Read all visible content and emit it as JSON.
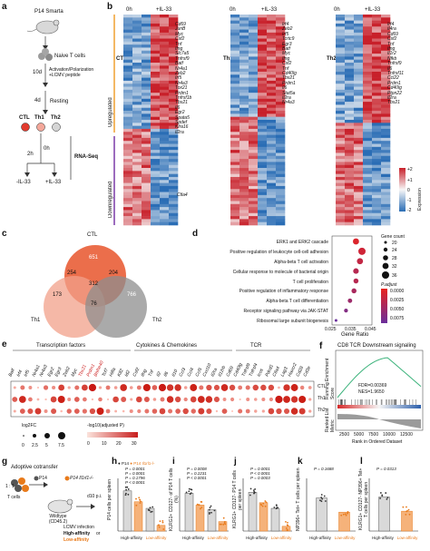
{
  "panel_letters": [
    "a",
    "b",
    "c",
    "d",
    "e",
    "f",
    "g",
    "h",
    "i",
    "j",
    "k",
    "l"
  ],
  "a": {
    "mouse_label": "P14 Smarta",
    "cells": "Naive T cells",
    "step1_time": "10d",
    "step1_label": "Activation/Polarization +LCMV peptide",
    "step2_time": "4d",
    "step2_label": "Resting",
    "groups": [
      "CTL",
      "Th1",
      "Th2"
    ],
    "t0": "0h",
    "t2": "2h",
    "minus": "-IL-33",
    "plus": "+IL-33",
    "assay": "RNA-Seq"
  },
  "b": {
    "heatmaps": [
      {
        "title": "CTL",
        "genes_top": [
          "Cd69",
          "JunB",
          "Myc",
          "Csf2",
          "Tnf",
          "Ifng",
          "Slc7a5",
          "Tnfrsf9",
          "Batf",
          "Nr4a1",
          "Zeb2",
          "Irf5",
          "Nr4a3",
          "Tox21",
          "Prdm1",
          "Tnfrsf1b",
          "Tbx21",
          "Il6",
          "Egr2",
          "Spata5",
          "Spdef",
          "Klra16",
          "Il2ra"
        ],
        "genes_bottom": [
          "Ctla4"
        ]
      },
      {
        "title": "Th1",
        "genes_top": [
          "Irf4",
          "Zeb2",
          "Irf5",
          "Tcrtc9",
          "Egr3",
          "Batf",
          "Myc",
          "Ifng",
          "Csf2",
          "Tnf",
          "Cd40lg",
          "Tbx21",
          "Prdm1",
          "Il6",
          "Stat5a",
          "Il2ra",
          "Nr4a3"
        ],
        "genes_bottom": []
      },
      {
        "title": "Th2",
        "genes_top": [
          "Irf4",
          "Il4ra",
          "Cd69",
          "Csf2",
          "Tnf",
          "Ifng",
          "Il1r2",
          "Nfkb",
          "Tnfrsf9",
          "Il6",
          "Tnfrsf11",
          "Ccl22",
          "Prdm1",
          "Cd40lg",
          "Ptpn22",
          "Il2ra",
          "Tbx21"
        ],
        "genes_bottom": []
      }
    ],
    "col_labels": [
      "0h",
      "+IL-33"
    ],
    "upregulated": "Upregulated",
    "downregulated": "Downregulated",
    "scale_title": "Expression",
    "scale_ticks": [
      "+2",
      "+1",
      "0",
      "-1",
      "-2"
    ]
  },
  "c": {
    "sets": [
      "CTL",
      "Th1",
      "Th2"
    ],
    "values": {
      "ctl_only": "651",
      "th1_only": "173",
      "th2_only": "766",
      "ctl_th1": "254",
      "ctl_th2": "204",
      "th1_th2": "76",
      "all": "312"
    },
    "colors": {
      "ctl": "#e8552c",
      "th1": "#f2a08a",
      "th2": "#9a9a9a"
    }
  },
  "d": {
    "chart_data": {
      "type": "scatter",
      "categories": [
        "ERK1 and ERK2 cascade",
        "Positive regulation of leukocyte cell-cell adhesion",
        "Alpha-beta T cell activation",
        "Cellular response to molecule of bacterial origin",
        "T cell proliferation",
        "Positive regulation of inflammatory response",
        "Alpha-beta T cell differentiation",
        "Receptor signaling pathway via JAK-STAT",
        "Ribosomal large subunit biogenesis"
      ],
      "gene_ratio": [
        0.037,
        0.04,
        0.039,
        0.037,
        0.037,
        0.036,
        0.034,
        0.032,
        0.027
      ],
      "gene_count": [
        32,
        36,
        32,
        30,
        28,
        28,
        26,
        24,
        20
      ],
      "p_adjust": [
        0.001,
        0.002,
        0.003,
        0.004,
        0.004,
        0.005,
        0.006,
        0.008,
        0.01
      ],
      "xlabel": "Gene Ratio",
      "xticks": [
        "0.025",
        "0.035",
        "0.045"
      ],
      "xlim": [
        0.025,
        0.045
      ],
      "legend_count_title": "Gene count",
      "legend_counts": [
        "20",
        "24",
        "28",
        "32",
        "36"
      ],
      "legend_p_title": "P.adjust",
      "legend_p_ticks": [
        "0.0000",
        "0.0025",
        "0.0050",
        "0.0075"
      ]
    }
  },
  "e": {
    "group_titles": [
      "Transcription factors",
      "Cytokines & Chemokines",
      "TCR"
    ],
    "genes": [
      "Batf",
      "Irf4",
      "Irf5",
      "Nr4a1",
      "Nr4a3",
      "Egr2",
      "Egr3",
      "Zeb2",
      "Myc",
      "Tbx21",
      "Prdm1",
      "Bhlhe40",
      "Tcf7",
      "Hifla",
      "Klf2",
      "Id2",
      "Csf2",
      "Ifng",
      "Tnf",
      "Il2",
      "Il6",
      "Il10",
      "Ccl3",
      "Ccl4",
      "Ccl5",
      "Cxcl10",
      "Il2ra",
      "Il12rb",
      "Cd69",
      "Cd40lg",
      "Tnfrsf9",
      "Tnfrsf4",
      "Icos",
      "Pdcd1",
      "Ctla4",
      "Lag3",
      "Havcr2",
      "Cd28",
      "Cd3e"
    ],
    "red_genes": [
      "Tbx21",
      "Prdm1",
      "Bhlhe40"
    ],
    "rows": [
      "CTL",
      "Th1",
      "Th2"
    ],
    "legend_fc": "log2FC",
    "legend_sizes": [
      "0",
      "2.5",
      "5",
      "7.5"
    ],
    "legend_p": "-log10(adjusted P)",
    "legend_p_ticks": [
      "0",
      "10",
      "20",
      "30"
    ]
  },
  "f": {
    "chart_data": {
      "type": "line",
      "title": "CD8 TCR Downstream signaling",
      "ylabel_top": "Running Enrichment Score",
      "ylabel_bottom": "Ranked List Metric",
      "xlabel": "Rank in Ordered Dataset",
      "xticks": [
        "2500",
        "5000",
        "7500",
        "10000",
        "12500"
      ],
      "fdr": "FDR=0.00369",
      "nes": "NES=1.9650",
      "yticks_top": [
        "0.6",
        "0.4",
        "0.2",
        "0.0"
      ],
      "yticks_bottom": [
        "5",
        "0",
        "-5"
      ]
    }
  },
  "g": {
    "title": "Adoptive cotransfer",
    "ratio": "1 : 1",
    "legend_wt": "P14",
    "legend_ko": "P14 Il1rl1-/-",
    "t_cells": "T cells",
    "host": "Wildtype (CD45.2)",
    "time": "d10 p.i.",
    "infection": "LCMV infection",
    "high": "High-affinity",
    "or": "or",
    "low": "Low-affinity"
  },
  "h": {
    "chart_data": {
      "type": "bar",
      "categories": [
        "High-affinity",
        "Low-affinity"
      ],
      "series": [
        {
          "name": "P14",
          "values": [
            85,
            48
          ]
        },
        {
          "name": "P14 Il1rl1-/-",
          "values": [
            62,
            12
          ]
        }
      ],
      "ylabel": "P14 cells per spleen",
      "ylim": [
        0,
        100
      ],
      "pvals": [
        "P = 0.0001",
        "P = 0.0001",
        "P = 0.1796",
        "P < 0.0001"
      ],
      "legend": [
        "P14",
        "P14 Il1rl1-/-"
      ]
    }
  },
  "i": {
    "chart_data": {
      "type": "bar",
      "categories": [
        "High-affinity",
        "Low-affinity"
      ],
      "series": [
        {
          "name": "P14",
          "values": [
            80,
            45
          ]
        },
        {
          "name": "P14 Il1rl1-/-",
          "values": [
            55,
            20
          ]
        }
      ],
      "ylabel": "KLRG1+ CD127- of P14 T cells (%)",
      "ylim": [
        0,
        100
      ],
      "pvals": [
        "P = 0.0008",
        "P = 0.2231",
        "P < 0.0001"
      ]
    }
  },
  "j": {
    "chart_data": {
      "type": "bar",
      "categories": [
        "High-affinity",
        "Low-affinity"
      ],
      "series": [
        {
          "name": "P14",
          "values": [
            82,
            48
          ]
        },
        {
          "name": "P14 Il1rl1-/-",
          "values": [
            60,
            10
          ]
        }
      ],
      "ylabel": "KLRG1+ CD127- P14 T cells per spleen",
      "ylim": [
        0,
        100
      ],
      "pvals": [
        "P = 0.0001",
        "P < 0.0001",
        "P = 0.0003"
      ]
    }
  },
  "k": {
    "chart_data": {
      "type": "bar",
      "categories": [
        "High-affinity",
        "Low-affinity"
      ],
      "series": [
        {
          "name": "P14",
          "values": [
            70,
            40
          ]
        }
      ],
      "ylabel": "NP396+ Tet+ T cells per spleen",
      "ylim": [
        0,
        100
      ],
      "pvals": [
        "P = 0.1688"
      ]
    }
  },
  "l": {
    "chart_data": {
      "type": "bar",
      "categories": [
        "High-affinity",
        "Low-affinity"
      ],
      "series": [
        {
          "name": "P14",
          "values": [
            72,
            42
          ]
        }
      ],
      "ylabel": "KLRG1+ CD127- NP396+ Tet+ T cells per spleen",
      "ylim": [
        0,
        100
      ],
      "pvals": [
        "P = 0.0313"
      ]
    }
  }
}
